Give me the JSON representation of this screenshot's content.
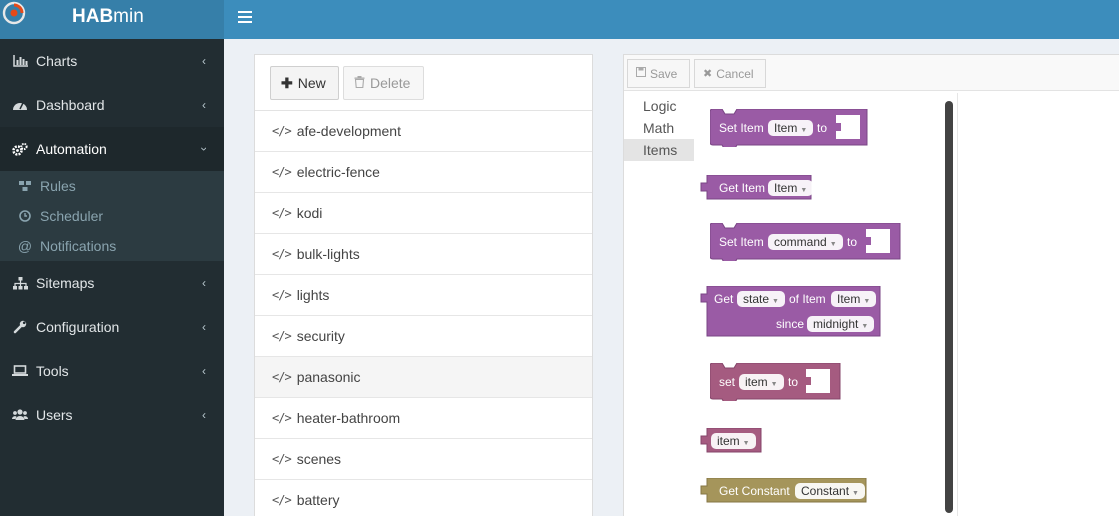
{
  "app": {
    "title_bold": "HAB",
    "title_rest": "min"
  },
  "sidebar": {
    "items": [
      {
        "label": "Charts"
      },
      {
        "label": "Dashboard"
      },
      {
        "label": "Automation"
      },
      {
        "label": "Sitemaps"
      },
      {
        "label": "Configuration"
      },
      {
        "label": "Tools"
      },
      {
        "label": "Users"
      }
    ],
    "sub_items": [
      {
        "label": "Rules"
      },
      {
        "label": "Scheduler"
      },
      {
        "label": "Notifications"
      }
    ]
  },
  "rules_panel": {
    "new_label": "New",
    "delete_label": "Delete",
    "rules": [
      {
        "name": "afe-development"
      },
      {
        "name": "electric-fence"
      },
      {
        "name": "kodi"
      },
      {
        "name": "bulk-lights"
      },
      {
        "name": "lights"
      },
      {
        "name": "security"
      },
      {
        "name": "panasonic"
      },
      {
        "name": "heater-bathroom"
      },
      {
        "name": "scenes"
      },
      {
        "name": "battery"
      }
    ],
    "code_glyph": "</>"
  },
  "editor": {
    "save_label": "Save",
    "cancel_label": "Cancel",
    "toolbox": [
      {
        "label": "Logic"
      },
      {
        "label": "Math"
      },
      {
        "label": "Items"
      }
    ],
    "blocks": {
      "set_item": {
        "text1": "Set Item",
        "dd": "Item",
        "text2": "to"
      },
      "get_item": {
        "text1": "Get Item",
        "dd": "Item"
      },
      "set_item_command": {
        "text1": "Set Item",
        "dd": "command",
        "text2": "to"
      },
      "get_state": {
        "text1": "Get",
        "dd1": "state",
        "text2": "of Item",
        "dd2": "Item",
        "text3": "since",
        "dd3": "midnight"
      },
      "set_var": {
        "text1": "set",
        "dd": "item",
        "text2": "to"
      },
      "var": {
        "dd": "item"
      },
      "get_constant": {
        "text1": "Get Constant",
        "dd": "Constant"
      }
    },
    "colors": {
      "item_block": "#9a5ba5",
      "var_block": "#a55b80",
      "constant_block": "#a5955b"
    }
  }
}
